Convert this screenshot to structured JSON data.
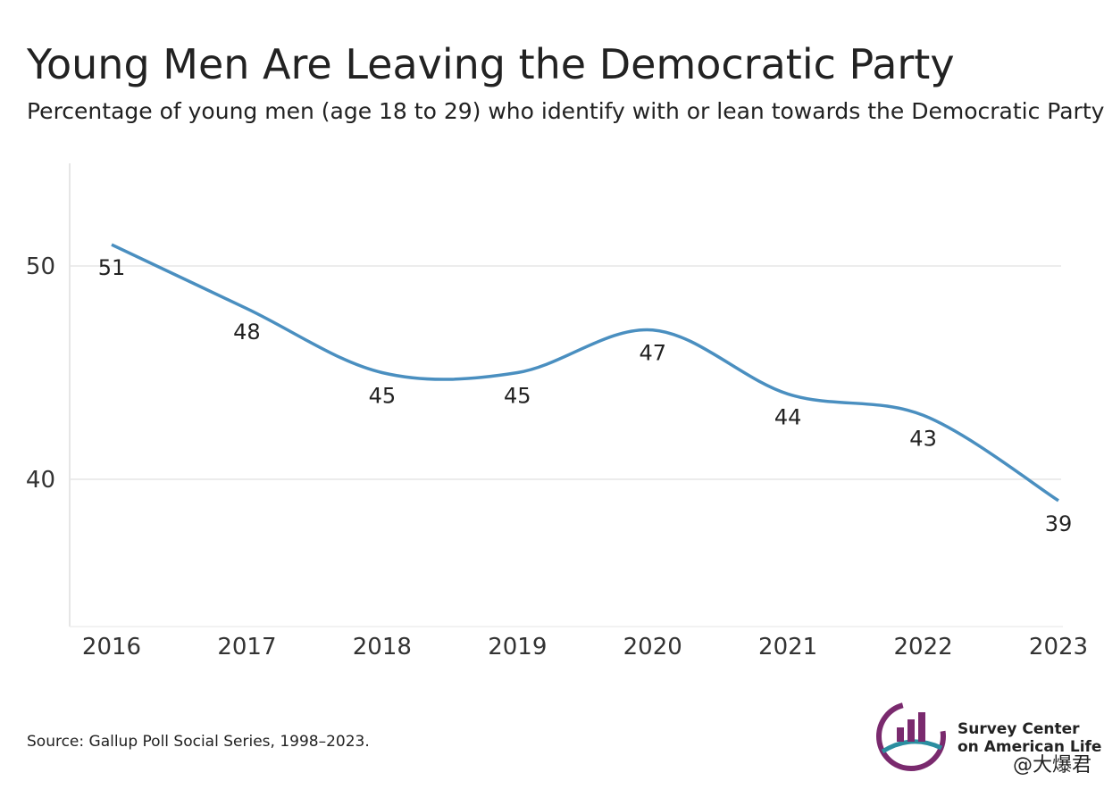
{
  "chart_data": {
    "type": "line",
    "title": "Young Men Are Leaving the Democratic Party",
    "subtitle": "Percentage of young men (age 18 to 29) who identify with or lean towards the Democratic Party",
    "categories": [
      "2016",
      "2017",
      "2018",
      "2019",
      "2020",
      "2021",
      "2022",
      "2023"
    ],
    "series": [
      {
        "name": "Young men",
        "color": "#4a8fc0",
        "values": [
          51,
          48,
          45,
          45,
          47,
          44,
          43,
          39
        ]
      }
    ],
    "ylim": [
      33,
      55
    ],
    "yticks": [
      40,
      50
    ],
    "grid": true,
    "source": "Source: Gallup Poll Social Series, 1998–2023.",
    "logo": [
      "Survey Center",
      "on American Life"
    ],
    "watermark": "@大爆君"
  }
}
